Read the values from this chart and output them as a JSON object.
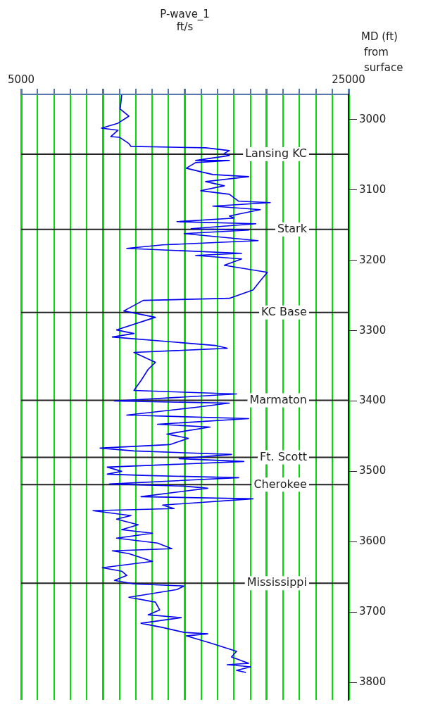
{
  "chart_data": {
    "type": "line",
    "xlabel": "P-wave_1\nft/s",
    "ylabel": "MD (ft)\nfrom\nsurface",
    "xlim": [
      5000,
      25000
    ],
    "xticks": [
      5000,
      {
        "value": 6000,
        "label": null
      },
      {
        "value": 7000,
        "label": null
      },
      {
        "value": 8000,
        "label": null
      },
      {
        "value": 9000,
        "label": null
      },
      {
        "value": 10000,
        "label": null
      },
      {
        "value": 11000,
        "label": null
      },
      {
        "value": 12000,
        "label": null
      },
      {
        "value": 13000,
        "label": null
      },
      {
        "value": 14000,
        "label": null
      },
      {
        "value": 15000,
        "label": null
      },
      {
        "value": 16000,
        "label": null
      },
      {
        "value": 17000,
        "label": null
      },
      {
        "value": 18000,
        "label": null
      },
      {
        "value": 19000,
        "label": null
      },
      {
        "value": 20000,
        "label": null
      },
      {
        "value": 21000,
        "label": null
      },
      {
        "value": 22000,
        "label": null
      },
      {
        "value": 23000,
        "label": null
      },
      {
        "value": 24000,
        "label": null
      },
      25000
    ],
    "ylim": [
      3825,
      2964
    ],
    "yticks": [
      3000,
      3100,
      3200,
      3300,
      3400,
      3500,
      3600,
      3700,
      3800
    ],
    "grid": "x",
    "legend": false,
    "marker": "none",
    "line_style": "solid",
    "series": [
      {
        "color": "#0000ee",
        "x": [
          11140,
          11050,
          11580,
          10920,
          9910,
          10920,
          10480,
          11010,
          11580,
          11710,
          16270,
          17720,
          17410,
          17720,
          15660,
          17720,
          15660,
          15090,
          15970,
          16710,
          18900,
          16270,
          17410,
          15970,
          17720,
          18290,
          20220,
          16710,
          19610,
          17720,
          18030,
          14520,
          19340,
          15390,
          18900,
          14960,
          19470,
          13640,
          11450,
          18470,
          15660,
          18470,
          17410,
          20040,
          19610,
          19170,
          17720,
          12460,
          11270,
          13200,
          10830,
          11890,
          10570,
          16840,
          17590,
          11890,
          13200,
          12760,
          12320,
          11890,
          18160,
          10700,
          17720,
          15660,
          11450,
          18900,
          13330,
          16540,
          13900,
          15220,
          14080,
          9820,
          11890,
          17850,
          14650,
          18600,
          10260,
          11140,
          10260,
          12760,
          18290,
          10390,
          14960,
          16400,
          12320,
          19170,
          13640,
          14340,
          9390,
          11710,
          10830,
          12150,
          11140,
          13030,
          10830,
          13330,
          14210,
          10570,
          11580,
          13030,
          9960,
          11140,
          11450,
          10700,
          11890,
          14960,
          14520,
          11580,
          13200,
          13460,
          12760,
          14780,
          12320,
          13640,
          14960,
          16400,
          15090,
          16540,
          18160,
          17850,
          18900,
          17590,
          19040,
          18160,
          18730
        ],
        "values": [
          2965,
          2985,
          2995,
          3005,
          3012,
          3015,
          3024,
          3025,
          3034,
          3038,
          3040,
          3044,
          3048,
          3051,
          3058,
          3058,
          3061,
          3069,
          3074,
          3078,
          3081,
          3088,
          3094,
          3101,
          3106,
          3116,
          3118,
          3123,
          3128,
          3137,
          3140,
          3145,
          3148,
          3155,
          3157,
          3162,
          3172,
          3178,
          3183,
          3190,
          3193,
          3198,
          3207,
          3217,
          3229,
          3242,
          3254,
          3257,
          3272,
          3281,
          3299,
          3304,
          3309,
          3321,
          3325,
          3331,
          3345,
          3355,
          3371,
          3385,
          3390,
          3400,
          3403,
          3409,
          3420,
          3425,
          3433,
          3437,
          3447,
          3453,
          3462,
          3467,
          3471,
          3476,
          3482,
          3486,
          3494,
          3500,
          3504,
          3506,
          3509,
          3518,
          3521,
          3524,
          3536,
          3539,
          3548,
          3553,
          3556,
          3563,
          3568,
          3576,
          3583,
          3588,
          3595,
          3602,
          3610,
          3613,
          3617,
          3628,
          3637,
          3642,
          3648,
          3655,
          3660,
          3663,
          3668,
          3679,
          3686,
          3697,
          3704,
          3708,
          3716,
          3722,
          3729,
          3731,
          3734,
          3744,
          3756,
          3764,
          3773,
          3775,
          3778,
          3783,
          3786
        ]
      }
    ],
    "ref_lines": [
      {
        "axis": "y",
        "value": 3049,
        "label": "Lansing KC",
        "color": "#222222"
      },
      {
        "axis": "y",
        "value": 3156,
        "label": "Stark",
        "color": "#222222"
      },
      {
        "axis": "y",
        "value": 3274,
        "label": "KC Base",
        "color": "#222222"
      },
      {
        "axis": "y",
        "value": 3399,
        "label": "Marmaton",
        "color": "#222222"
      },
      {
        "axis": "y",
        "value": 3480,
        "label": "Ft. Scott",
        "color": "#222222"
      },
      {
        "axis": "y",
        "value": 3519,
        "label": "Cherokee",
        "color": "#222222"
      },
      {
        "axis": "y",
        "value": 3659,
        "label": "Mississippi",
        "color": "#222222"
      }
    ]
  }
}
